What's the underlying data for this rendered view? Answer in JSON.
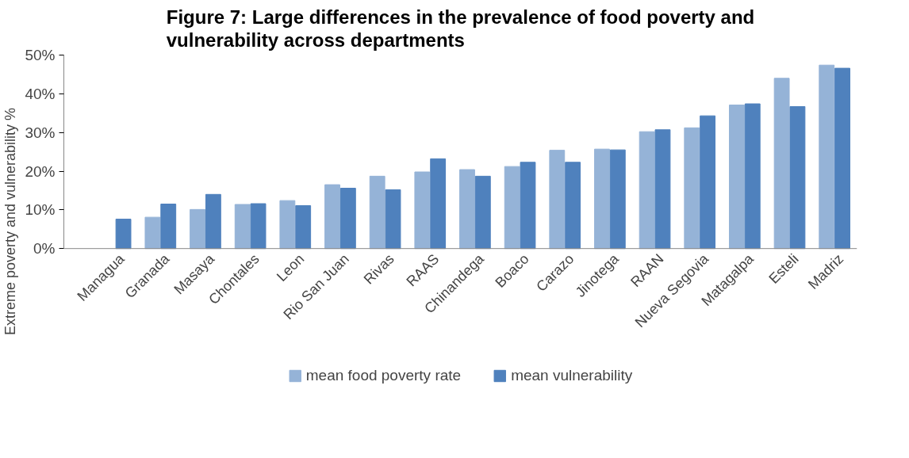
{
  "chart_data": {
    "type": "bar",
    "title": "Figure 7: Large differences in the prevalence of food poverty and vulnerability across departments",
    "ylabel": "Extreme poverty and vulnerability %",
    "categories": [
      "Managua",
      "Granada",
      "Masaya",
      "Chontales",
      "Leon",
      "Rio San Juan",
      "Rivas",
      "RAAS",
      "Chinandega",
      "Boaco",
      "Carazo",
      "Jinotega",
      "RAAN",
      "Nueva Segovia",
      "Matagalpa",
      "Esteli",
      "Madriz"
    ],
    "series": [
      {
        "name": "mean food poverty rate",
        "color": "#95b3d7",
        "values": [
          null,
          8.1,
          10.1,
          11.4,
          12.4,
          16.5,
          18.7,
          19.8,
          20.4,
          21.2,
          25.4,
          25.7,
          30.2,
          31.2,
          37.1,
          44.0,
          47.4
        ]
      },
      {
        "name": "mean vulnerability",
        "color": "#4f81bd",
        "values": [
          7.6,
          11.5,
          14.0,
          11.6,
          11.1,
          15.6,
          15.2,
          23.2,
          18.7,
          22.3,
          22.3,
          25.5,
          30.7,
          34.3,
          37.4,
          36.7,
          46.6
        ]
      }
    ],
    "ylim": [
      0,
      50
    ],
    "yticks": [
      {
        "value": 0,
        "label": "0%"
      },
      {
        "value": 10,
        "label": "10%"
      },
      {
        "value": 20,
        "label": "20%"
      },
      {
        "value": 30,
        "label": "30%"
      },
      {
        "value": 40,
        "label": "40%"
      },
      {
        "value": 50,
        "label": "50%"
      }
    ],
    "grid": false,
    "legend": "bottom"
  }
}
